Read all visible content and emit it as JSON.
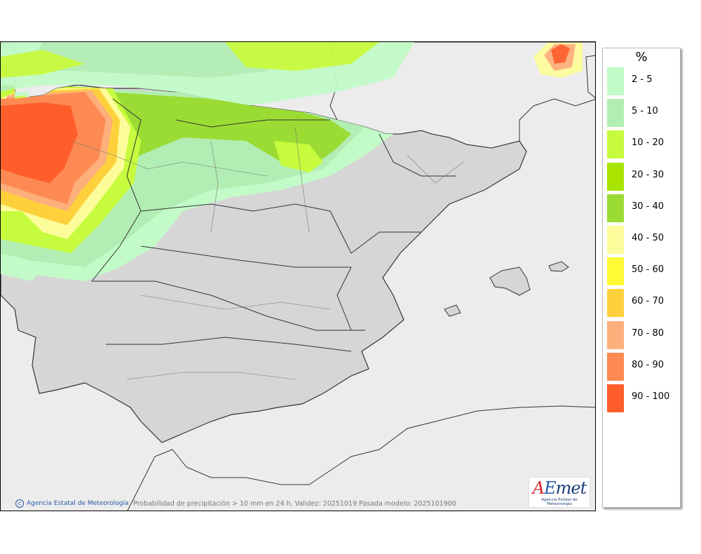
{
  "legend": {
    "title": "%",
    "items": [
      {
        "label": "2 - 5",
        "color": "#c2fbc8"
      },
      {
        "label": "5 - 10",
        "color": "#b2eeb3"
      },
      {
        "label": "10 - 20",
        "color": "#c7fb3d"
      },
      {
        "label": "20 - 30",
        "color": "#a9e400"
      },
      {
        "label": "30 - 40",
        "color": "#9bdc34"
      },
      {
        "label": "40 - 50",
        "color": "#fdfc9b"
      },
      {
        "label": "50 - 60",
        "color": "#fefa35"
      },
      {
        "label": "60 - 70",
        "color": "#fed13c"
      },
      {
        "label": "70 - 80",
        "color": "#fdaf7c"
      },
      {
        "label": "80 - 90",
        "color": "#fe8a53"
      },
      {
        "label": "90 - 100",
        "color": "#ff5e2b"
      }
    ]
  },
  "footer": {
    "copyright": "Agencia Estatal de Meteorología",
    "caption": "Probabilidad de precipitación > 10 mm en 24 h. Validez: 20251019 Pasada modelo: 2025101900"
  },
  "logo": {
    "letter_a": "A",
    "letter_e": "E",
    "letters_rest": "met",
    "subtitle": "Agencia Estatal de Meteorología"
  },
  "map": {
    "land_color": "#d6d6d6",
    "sea_color": "#ececec",
    "border_color": "#333333"
  }
}
